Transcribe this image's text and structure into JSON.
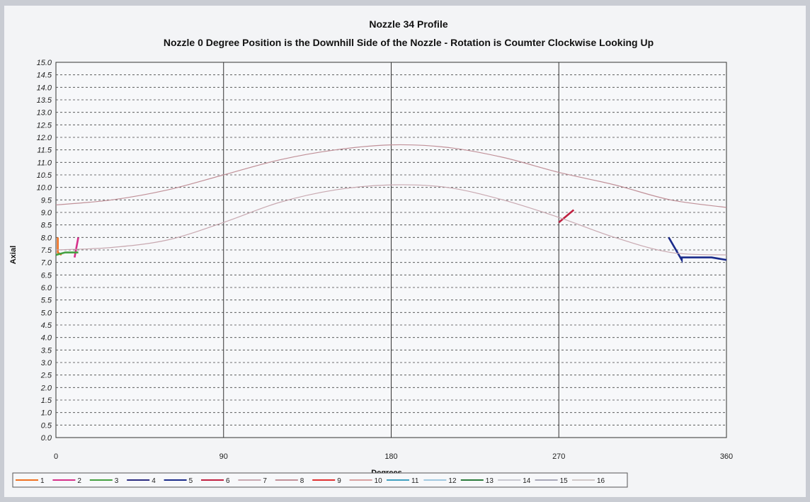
{
  "chart_data": {
    "type": "line",
    "title": "Nozzle 34 Profile",
    "subtitle": "Nozzle 0 Degree Position is the Downhill Side of the Nozzle - Rotation is Coumter Clockwise Looking Up",
    "xlabel": "Degrees",
    "ylabel": "Axial",
    "xlim": [
      0,
      360
    ],
    "ylim": [
      0,
      15
    ],
    "x_ticks": [
      "0",
      "90",
      "180",
      "270",
      "360"
    ],
    "y_ticks": [
      "0.0",
      "0.5",
      "1.0",
      "1.5",
      "2.0",
      "2.5",
      "3.0",
      "3.5",
      "4.0",
      "4.5",
      "5.0",
      "5.5",
      "6.0",
      "6.5",
      "7.0",
      "7.5",
      "8.0",
      "8.5",
      "9.0",
      "9.5",
      "10.0",
      "10.5",
      "11.0",
      "11.5",
      "12.0",
      "12.5",
      "13.0",
      "13.5",
      "14.0",
      "14.5",
      "15.0"
    ],
    "grid": {
      "horizontal": "dashed",
      "vertical": "solid"
    },
    "legend_position": "bottom",
    "series": [
      {
        "name": "1",
        "color": "#f07020",
        "x": [
          1,
          1,
          3
        ],
        "y": [
          8.0,
          7.4,
          7.3
        ]
      },
      {
        "name": "2",
        "color": "#d6308a",
        "x": [
          10,
          12
        ],
        "y": [
          7.2,
          8.0
        ]
      },
      {
        "name": "3",
        "color": "#44a040",
        "x": [
          0,
          5,
          12
        ],
        "y": [
          7.3,
          7.4,
          7.4
        ]
      },
      {
        "name": "4",
        "color": "#2a2a80",
        "x": [],
        "y": []
      },
      {
        "name": "5",
        "color": "#1a2a8a",
        "x": [
          329,
          336,
          336,
          352,
          360
        ],
        "y": [
          8.0,
          7.1,
          7.2,
          7.2,
          7.1
        ]
      },
      {
        "name": "6",
        "color": "#c02040",
        "x": [
          270,
          278
        ],
        "y": [
          8.6,
          9.1
        ]
      },
      {
        "name": "7",
        "color": "#c8a8b0",
        "x": [
          0,
          30,
          60,
          90,
          120,
          150,
          180,
          210,
          240,
          270,
          300,
          330,
          360
        ],
        "y": [
          7.5,
          7.6,
          7.9,
          8.6,
          9.4,
          9.9,
          10.1,
          10.0,
          9.5,
          8.8,
          8.0,
          7.4,
          7.3
        ]
      },
      {
        "name": "8",
        "color": "#c09098",
        "x": [
          0,
          30,
          60,
          90,
          120,
          150,
          180,
          210,
          240,
          270,
          300,
          330,
          360
        ],
        "y": [
          9.3,
          9.5,
          9.9,
          10.5,
          11.1,
          11.5,
          11.7,
          11.6,
          11.2,
          10.6,
          10.1,
          9.5,
          9.2
        ]
      },
      {
        "name": "9",
        "color": "#e03030",
        "x": [],
        "y": []
      },
      {
        "name": "10",
        "color": "#d8a0a0",
        "x": [],
        "y": []
      },
      {
        "name": "11",
        "color": "#40a0c0",
        "x": [],
        "y": []
      },
      {
        "name": "12",
        "color": "#a0c8e0",
        "x": [],
        "y": []
      },
      {
        "name": "13",
        "color": "#2a7a3a",
        "x": [],
        "y": []
      },
      {
        "name": "14",
        "color": "#c8c8d0",
        "x": [],
        "y": []
      },
      {
        "name": "15",
        "color": "#a8a8b8",
        "x": [],
        "y": []
      },
      {
        "name": "16",
        "color": "#d0c8c8",
        "x": [],
        "y": []
      }
    ]
  }
}
